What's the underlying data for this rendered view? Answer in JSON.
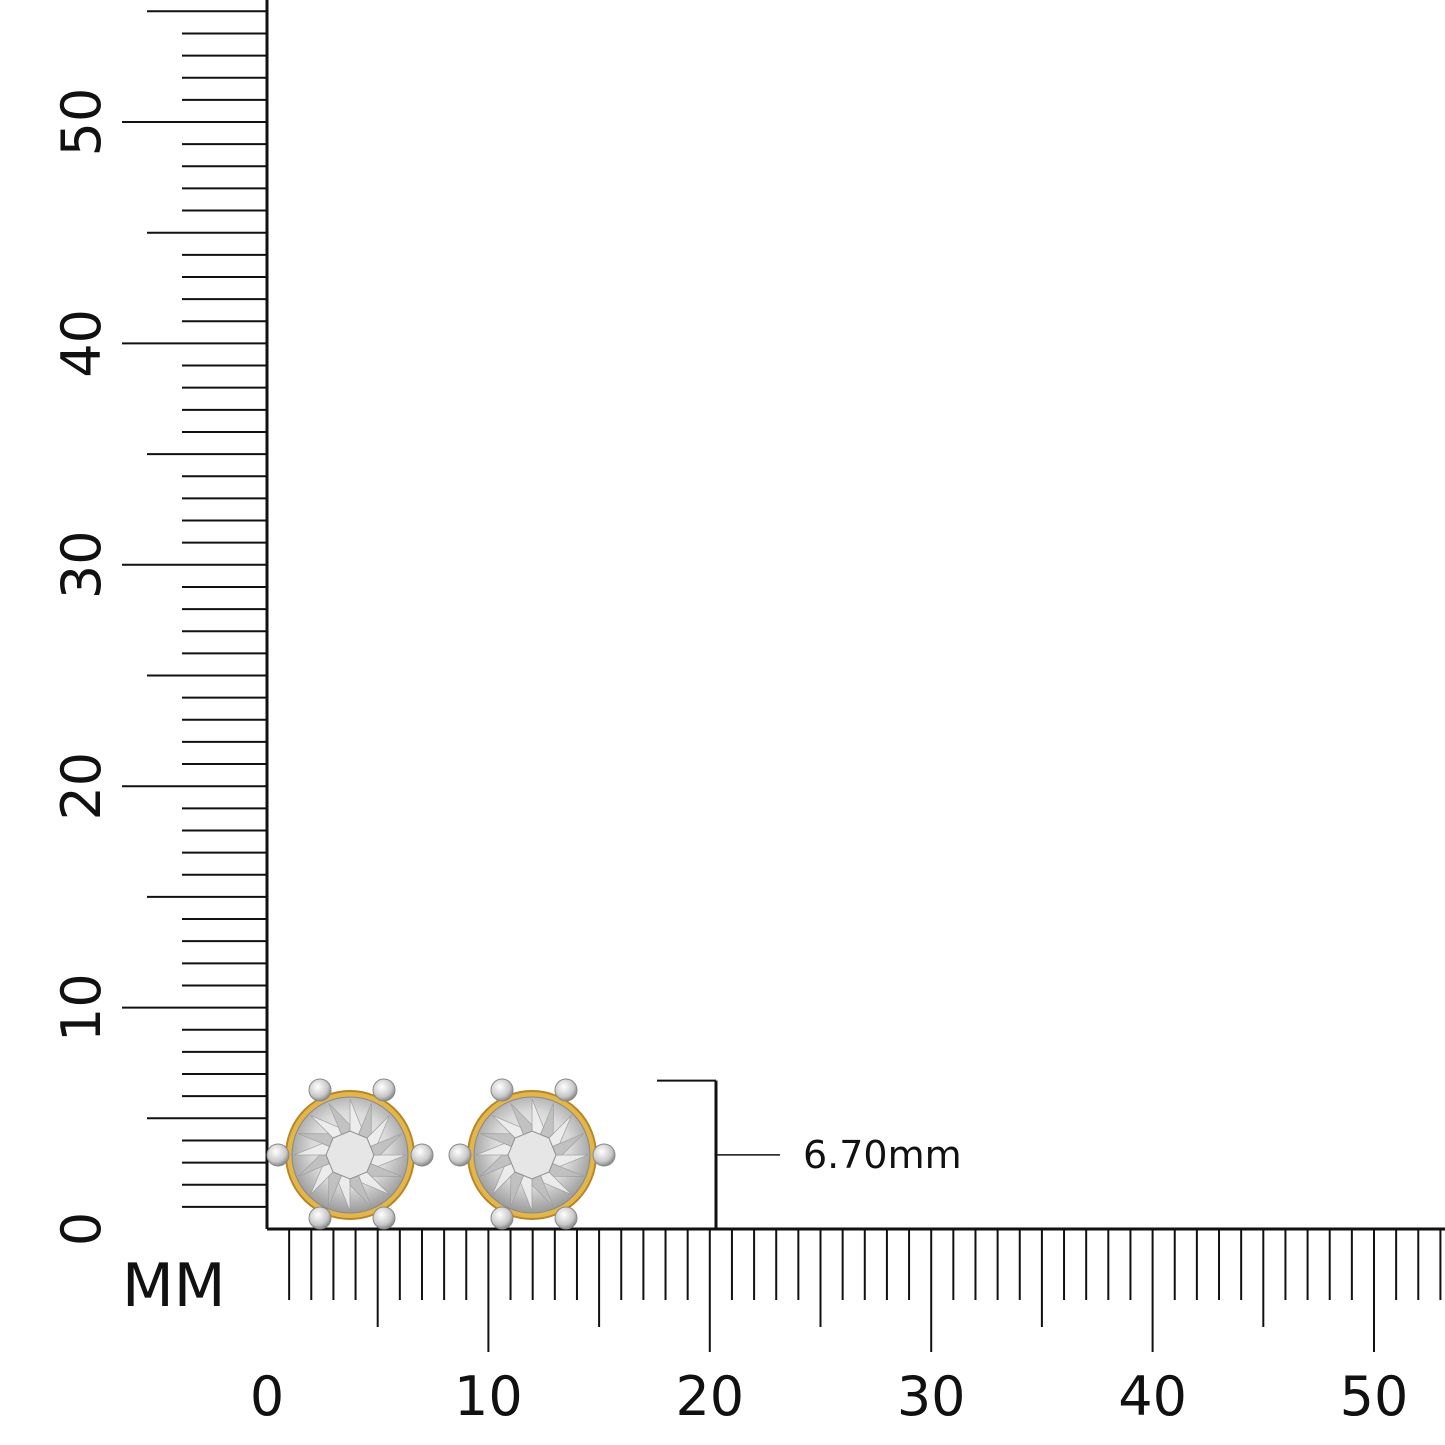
{
  "ruler": {
    "unit": "MM",
    "x_labels": [
      0,
      10,
      20,
      30,
      40,
      50
    ],
    "y_labels": [
      0,
      10,
      20,
      30,
      40,
      50
    ]
  },
  "measurement": {
    "value": 6.7,
    "label": "6.70mm"
  }
}
